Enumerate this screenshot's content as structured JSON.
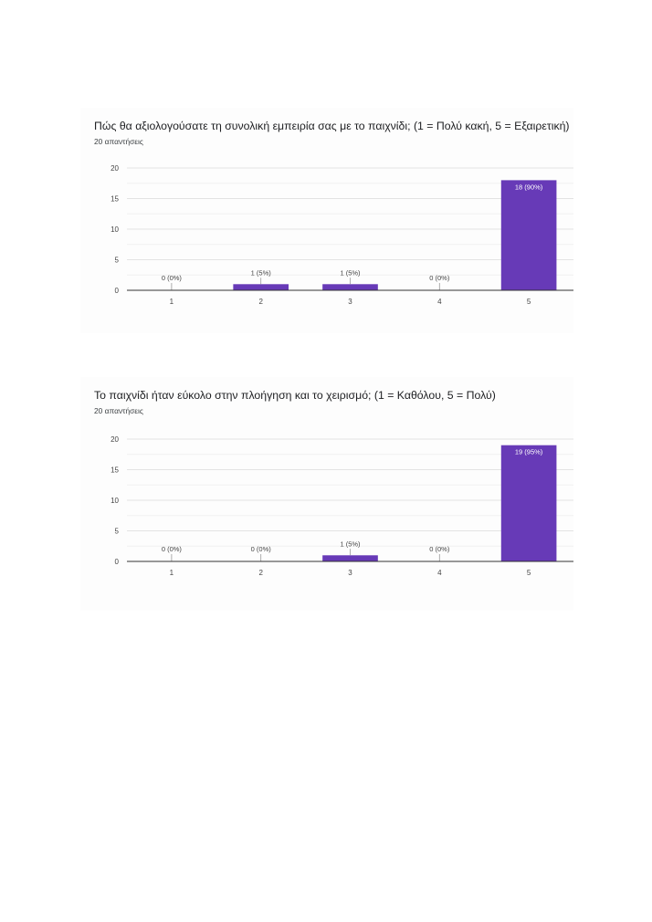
{
  "colors": {
    "bar": "#673ab7",
    "grid": "#e8e8e8",
    "axis": "#333333"
  },
  "chart_data": [
    {
      "type": "bar",
      "title": "Πώς θα αξιολογούσατε τη συνολική εμπειρία σας με το παιχνίδι; (1 = Πολύ κακή, 5 = Εξαιρετική)",
      "subtitle": "20 απαντήσεις",
      "categories": [
        "1",
        "2",
        "3",
        "4",
        "5"
      ],
      "values": [
        0,
        1,
        1,
        0,
        18
      ],
      "data_labels": [
        "0 (0%)",
        "1 (5%)",
        "1 (5%)",
        "0 (0%)",
        "18 (90%)"
      ],
      "yticks": [
        0,
        5,
        10,
        15,
        20
      ],
      "ylim": [
        0,
        20
      ],
      "grid": true
    },
    {
      "type": "bar",
      "title": "Το παιχνίδι ήταν εύκολο στην πλοήγηση και το χειρισμό; (1 = Καθόλου, 5 = Πολύ)",
      "subtitle": "20 απαντήσεις",
      "categories": [
        "1",
        "2",
        "3",
        "4",
        "5"
      ],
      "values": [
        0,
        0,
        1,
        0,
        19
      ],
      "data_labels": [
        "0 (0%)",
        "0 (0%)",
        "1 (5%)",
        "0 (0%)",
        "19 (95%)"
      ],
      "yticks": [
        0,
        5,
        10,
        15,
        20
      ],
      "ylim": [
        0,
        20
      ],
      "grid": true
    }
  ]
}
